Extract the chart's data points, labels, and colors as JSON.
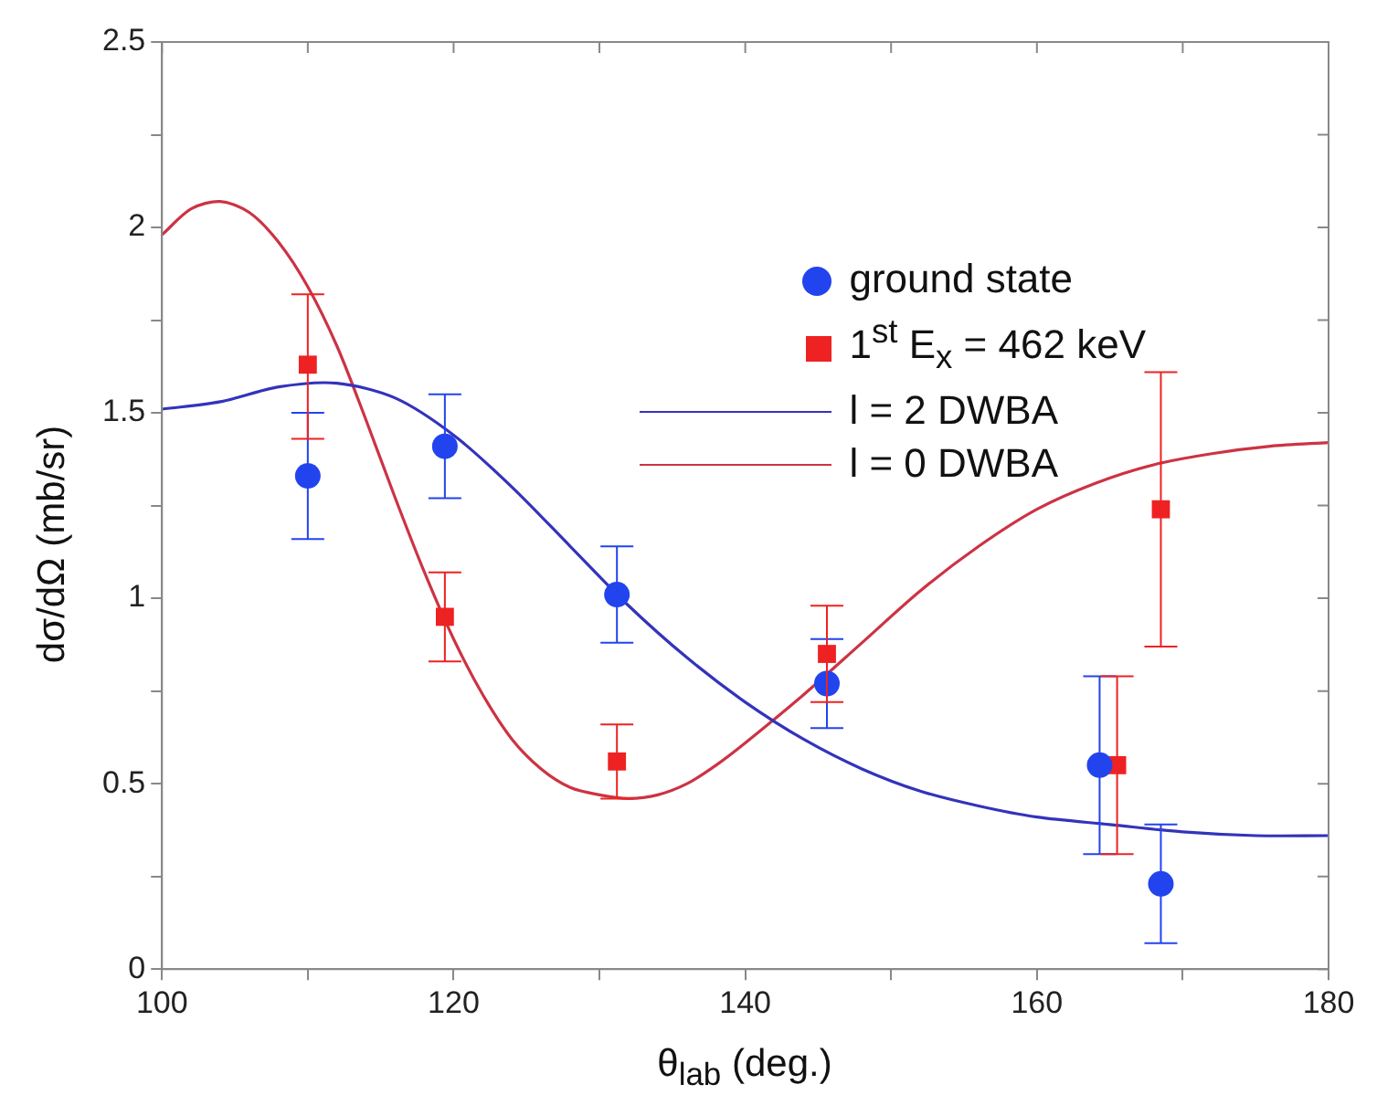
{
  "chart_data": {
    "type": "scatter",
    "xlabel": "θ$_{lab}$ (deg.)",
    "ylabel": "dσ/dΩ (mb/sr)",
    "xlim": [
      100,
      180
    ],
    "ylim": [
      0,
      2.5
    ],
    "xticks": [
      100,
      {
        "value": 110,
        "label": null
      },
      120,
      {
        "value": 130,
        "label": null
      },
      140,
      {
        "value": 150,
        "label": null
      },
      160,
      {
        "value": 170,
        "label": null
      },
      180
    ],
    "yticks": [
      0,
      {
        "value": 0.25,
        "label": null
      },
      0.5,
      {
        "value": 0.75,
        "label": null
      },
      1,
      {
        "value": 1.25,
        "label": null
      },
      1.5,
      {
        "value": 1.75,
        "label": null
      },
      2,
      {
        "value": 2.25,
        "label": null
      },
      2.5
    ],
    "grid": false,
    "legend": "top right",
    "series": [
      {
        "type": "scatter",
        "name": "ground state",
        "color": "#2244ee",
        "marker": "circle",
        "x": [
          110,
          119.4,
          131.2,
          145.6,
          164.3,
          168.5
        ],
        "values": [
          1.33,
          1.41,
          1.01,
          0.77,
          0.55,
          0.23
        ],
        "errors": [
          [
            1.16,
            1.5
          ],
          [
            1.27,
            1.55
          ],
          [
            0.88,
            1.14
          ],
          [
            0.65,
            0.89
          ],
          [
            0.31,
            0.79
          ],
          [
            0.07,
            0.39
          ]
        ]
      },
      {
        "type": "scatter",
        "name": "1$^{st}$ E$_{x}$ = 462 keV",
        "color": "#ee2222",
        "marker": "square",
        "x": [
          110,
          119.4,
          131.2,
          145.6,
          165.5,
          168.5
        ],
        "values": [
          1.63,
          0.95,
          0.56,
          0.85,
          0.55,
          1.24
        ],
        "errors": [
          [
            1.43,
            1.82
          ],
          [
            0.83,
            1.07
          ],
          [
            0.46,
            0.66
          ],
          [
            0.72,
            0.98
          ],
          [
            0.31,
            0.79
          ],
          [
            0.87,
            1.61
          ]
        ]
      },
      {
        "type": "line",
        "name": "l = 2 DWBA",
        "color": "#3333bb",
        "marker": "none",
        "x": [
          100,
          104,
          108,
          112,
          116,
          120,
          124,
          128,
          132,
          136,
          140,
          144,
          148,
          152,
          156,
          160,
          165,
          170,
          175,
          180
        ],
        "values": [
          1.51,
          1.53,
          1.57,
          1.58,
          1.54,
          1.44,
          1.3,
          1.14,
          0.98,
          0.84,
          0.72,
          0.62,
          0.54,
          0.48,
          0.44,
          0.41,
          0.39,
          0.37,
          0.36,
          0.36
        ]
      },
      {
        "type": "line",
        "name": "l = 0 DWBA",
        "color": "#cc3344",
        "marker": "none",
        "x": [
          100,
          102,
          104,
          106,
          108,
          110,
          112,
          114,
          116,
          118,
          120,
          122,
          124,
          126,
          128,
          130,
          132,
          134,
          136,
          138,
          140,
          144,
          148,
          152,
          156,
          160,
          164,
          168,
          172,
          176,
          180
        ],
        "values": [
          1.98,
          2.05,
          2.07,
          2.04,
          1.96,
          1.84,
          1.68,
          1.48,
          1.27,
          1.07,
          0.89,
          0.74,
          0.62,
          0.54,
          0.49,
          0.47,
          0.46,
          0.47,
          0.5,
          0.55,
          0.61,
          0.74,
          0.88,
          1.02,
          1.14,
          1.24,
          1.31,
          1.36,
          1.39,
          1.41,
          1.42
        ]
      }
    ]
  }
}
